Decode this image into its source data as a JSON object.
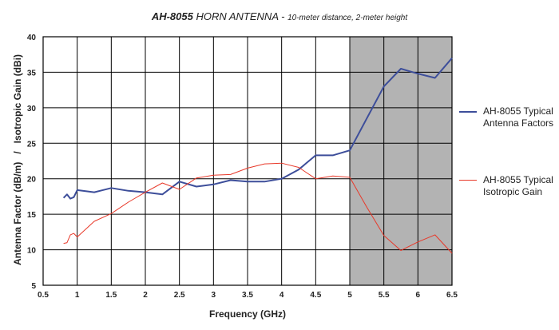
{
  "title": {
    "model": "AH-8055",
    "main": " HORN ANTENNA - ",
    "sub": "10-meter distance, 2-meter height"
  },
  "chart_data": {
    "type": "line",
    "xlabel": "Frequency (GHz)",
    "ylabel": "Antenna Factor (dB/m)   /   Isotropic Gain (dBi)",
    "xlim": [
      0.5,
      6.5
    ],
    "ylim": [
      5,
      40
    ],
    "xticks": [
      "0.5",
      "1",
      "1.5",
      "2",
      "2.5",
      "3",
      "3.5",
      "4",
      "4.5",
      "5",
      "5.5",
      "6",
      "6.5"
    ],
    "yticks": [
      "5",
      "10",
      "15",
      "20",
      "25",
      "30",
      "35",
      "40"
    ],
    "grid": true,
    "shaded_region": {
      "x_from": 5,
      "x_to": 6.5,
      "color": "#b3b3b3"
    },
    "legend_position": "right",
    "series": [
      {
        "name": "AH-8055 Typical Antenna Factors",
        "color": "#3d4e9a",
        "x": [
          0.8,
          0.85,
          0.9,
          0.95,
          1.0,
          1.25,
          1.5,
          1.75,
          2.0,
          2.25,
          2.5,
          2.75,
          3.0,
          3.25,
          3.5,
          3.75,
          4.0,
          4.25,
          4.5,
          4.75,
          5.0,
          5.25,
          5.5,
          5.75,
          6.0,
          6.25,
          6.5
        ],
        "y": [
          17.3,
          17.8,
          17.2,
          17.4,
          18.4,
          18.1,
          18.7,
          18.3,
          18.1,
          17.8,
          19.6,
          18.9,
          19.2,
          19.8,
          19.6,
          19.6,
          20.0,
          21.3,
          23.3,
          23.3,
          24.0,
          28.5,
          33.0,
          35.5,
          34.8,
          34.2,
          37.0
        ]
      },
      {
        "name": "AH-8055 Typical Isotropic Gain",
        "color": "#e8392a",
        "x": [
          0.8,
          0.85,
          0.9,
          0.95,
          1.0,
          1.25,
          1.5,
          1.75,
          2.0,
          2.25,
          2.5,
          2.75,
          3.0,
          3.25,
          3.5,
          3.75,
          4.0,
          4.25,
          4.5,
          4.75,
          5.0,
          5.25,
          5.5,
          5.75,
          6.0,
          6.25,
          6.5
        ],
        "y": [
          10.9,
          11.0,
          12.1,
          12.3,
          11.8,
          14.0,
          15.1,
          16.7,
          18.1,
          19.4,
          18.5,
          20.1,
          20.5,
          20.6,
          21.5,
          22.1,
          22.2,
          21.6,
          20.0,
          20.4,
          20.2,
          16.0,
          12.0,
          9.9,
          11.1,
          12.1,
          9.5
        ]
      }
    ]
  }
}
